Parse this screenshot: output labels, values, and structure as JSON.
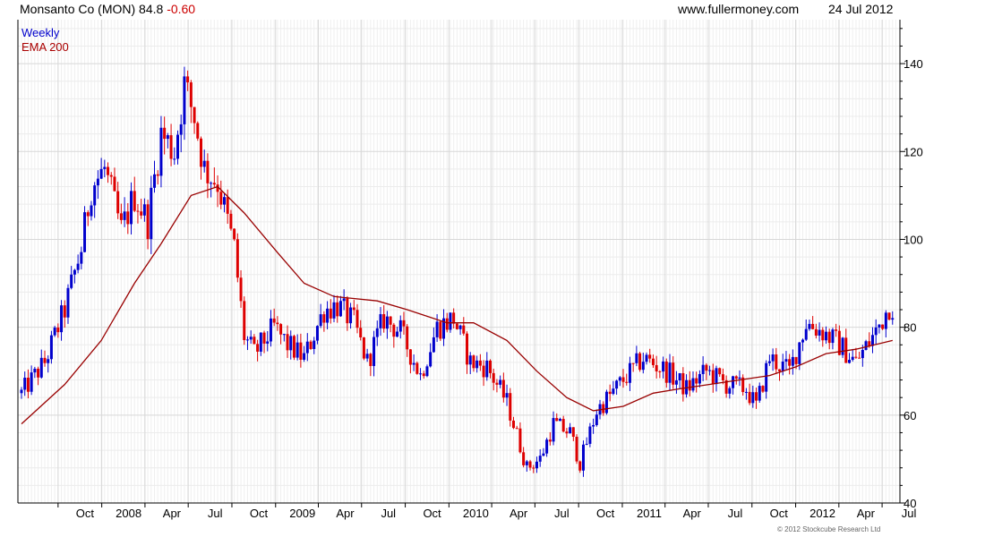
{
  "header": {
    "symbol": "Monsanto Co (MON)",
    "price": "84.8",
    "change": "-0.60",
    "site": "www.fullermoney.com",
    "date": "24 Jul 2012"
  },
  "legend": {
    "line1": "Weekly",
    "line2": "EMA 200"
  },
  "copyright": "© 2012 Stockcube Research Ltd",
  "colors": {
    "up": "#0000cc",
    "down": "#dd0000",
    "ema": "#990000",
    "grid": "#d8d8d8",
    "axis": "#000000"
  },
  "chart_data": {
    "type": "line",
    "ylim": [
      40,
      150
    ],
    "yticks": [
      40,
      60,
      80,
      100,
      120,
      140
    ],
    "x_ticks": [
      "Oct",
      "2008",
      "Apr",
      "Jul",
      "Oct",
      "2009",
      "Apr",
      "Jul",
      "Oct",
      "2010",
      "Apr",
      "Jul",
      "Oct",
      "2011",
      "Apr",
      "Jul",
      "Oct",
      "2012",
      "Apr",
      "Jul"
    ],
    "price_anchors": [
      [
        "2007-07-16",
        65
      ],
      [
        "2007-09-03",
        72
      ],
      [
        "2007-10-15",
        84
      ],
      [
        "2007-11-19",
        98
      ],
      [
        "2007-12-10",
        112
      ],
      [
        "2008-01-07",
        116
      ],
      [
        "2008-02-11",
        102
      ],
      [
        "2008-03-10",
        110
      ],
      [
        "2008-04-07",
        104
      ],
      [
        "2008-05-05",
        124
      ],
      [
        "2008-06-02",
        120
      ],
      [
        "2008-06-23",
        135
      ],
      [
        "2008-07-14",
        128
      ],
      [
        "2008-08-04",
        116
      ],
      [
        "2008-09-01",
        113
      ],
      [
        "2008-10-06",
        98
      ],
      [
        "2008-10-27",
        78
      ],
      [
        "2008-11-17",
        74
      ],
      [
        "2008-12-29",
        80
      ],
      [
        "2009-01-26",
        76
      ],
      [
        "2009-03-02",
        73
      ],
      [
        "2009-04-13",
        84
      ],
      [
        "2009-05-11",
        85
      ],
      [
        "2009-06-15",
        81
      ],
      [
        "2009-07-13",
        72
      ],
      [
        "2009-08-17",
        82
      ],
      [
        "2009-09-21",
        79
      ],
      [
        "2009-11-02",
        69
      ],
      [
        "2009-12-07",
        80
      ],
      [
        "2010-01-11",
        82
      ],
      [
        "2010-02-15",
        72
      ],
      [
        "2010-03-22",
        71
      ],
      [
        "2010-05-03",
        63
      ],
      [
        "2010-06-14",
        48
      ],
      [
        "2010-07-12",
        50
      ],
      [
        "2010-08-09",
        58
      ],
      [
        "2010-09-13",
        56
      ],
      [
        "2010-10-04",
        49
      ],
      [
        "2010-11-08",
        61
      ],
      [
        "2011-01-03",
        68
      ],
      [
        "2011-02-14",
        73
      ],
      [
        "2011-04-04",
        70
      ],
      [
        "2011-05-16",
        66
      ],
      [
        "2011-06-27",
        70
      ],
      [
        "2011-08-08",
        67
      ],
      [
        "2011-09-19",
        66
      ],
      [
        "2011-10-10",
        62
      ],
      [
        "2011-11-07",
        73
      ],
      [
        "2011-12-19",
        70
      ],
      [
        "2012-01-23",
        81
      ],
      [
        "2012-02-27",
        79
      ],
      [
        "2012-04-02",
        76
      ],
      [
        "2012-05-07",
        72
      ],
      [
        "2012-06-18",
        79
      ],
      [
        "2012-07-16",
        85
      ],
      [
        "2012-07-23",
        84.8
      ]
    ],
    "ema_anchors": [
      [
        "2007-07-16",
        58
      ],
      [
        "2007-10-15",
        67
      ],
      [
        "2007-12-31",
        77
      ],
      [
        "2008-03-10",
        90
      ],
      [
        "2008-05-05",
        99
      ],
      [
        "2008-07-07",
        110
      ],
      [
        "2008-09-01",
        112
      ],
      [
        "2008-10-27",
        106
      ],
      [
        "2009-01-05",
        97
      ],
      [
        "2009-03-02",
        90
      ],
      [
        "2009-05-04",
        87
      ],
      [
        "2009-08-03",
        86
      ],
      [
        "2009-10-05",
        84
      ],
      [
        "2009-12-28",
        81
      ],
      [
        "2010-02-22",
        81
      ],
      [
        "2010-05-03",
        77
      ],
      [
        "2010-07-05",
        70
      ],
      [
        "2010-09-06",
        64
      ],
      [
        "2010-11-01",
        61
      ],
      [
        "2011-01-03",
        62
      ],
      [
        "2011-03-07",
        65
      ],
      [
        "2011-05-02",
        66
      ],
      [
        "2011-07-04",
        67
      ],
      [
        "2011-09-05",
        68
      ],
      [
        "2011-11-07",
        69
      ],
      [
        "2012-01-02",
        71
      ],
      [
        "2012-03-05",
        74
      ],
      [
        "2012-05-07",
        75
      ],
      [
        "2012-07-23",
        77
      ]
    ]
  }
}
